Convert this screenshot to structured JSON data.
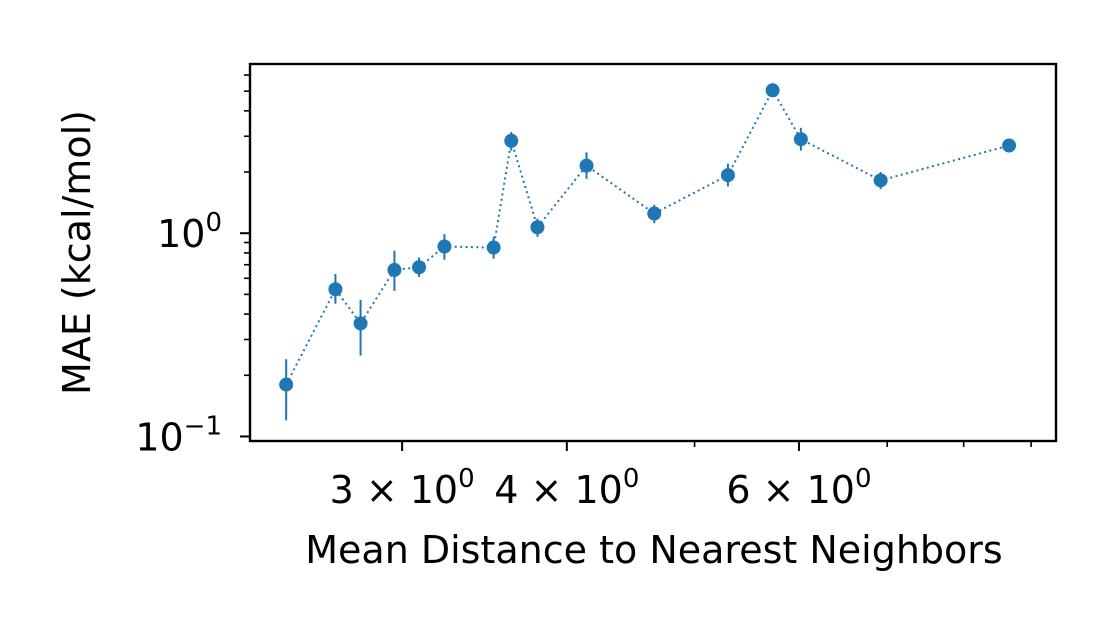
{
  "chart_data": {
    "type": "scatter",
    "title": "",
    "xlabel": "Mean Distance to Nearest Neighbors",
    "ylabel": "MAE (kcal/mol)",
    "x_scale": "log",
    "y_scale": "log",
    "xlim": [
      2.3,
      9.4
    ],
    "ylim": [
      0.095,
      6.8
    ],
    "x_major_ticks": [
      {
        "value": 3,
        "mantissa": "3",
        "exp": "0"
      },
      {
        "value": 4,
        "mantissa": "4",
        "exp": "0"
      },
      {
        "value": 6,
        "mantissa": "6",
        "exp": "0"
      }
    ],
    "x_minor_ticks": [
      5,
      7,
      8,
      9
    ],
    "y_major_ticks": [
      {
        "value": 0.1,
        "mantissa": "10",
        "exp": "−1"
      },
      {
        "value": 1.0,
        "mantissa": "10",
        "exp": "0"
      }
    ],
    "y_minor_ticks": [
      0.2,
      0.3,
      0.4,
      0.5,
      0.6,
      0.7,
      0.8,
      0.9,
      2,
      3,
      4,
      5,
      6
    ],
    "line_style": "dotted",
    "color": "#1f77b4",
    "grid": false,
    "points": [
      {
        "x": 2.45,
        "y": 0.18,
        "err_low": 0.12,
        "err_high": 0.24
      },
      {
        "x": 2.67,
        "y": 0.53,
        "err_low": 0.45,
        "err_high": 0.63
      },
      {
        "x": 2.79,
        "y": 0.36,
        "err_low": 0.25,
        "err_high": 0.47
      },
      {
        "x": 2.96,
        "y": 0.66,
        "err_low": 0.52,
        "err_high": 0.82
      },
      {
        "x": 3.09,
        "y": 0.68,
        "err_low": 0.61,
        "err_high": 0.76
      },
      {
        "x": 3.23,
        "y": 0.86,
        "err_low": 0.74,
        "err_high": 0.99
      },
      {
        "x": 3.52,
        "y": 0.85,
        "err_low": 0.75,
        "err_high": 0.96
      },
      {
        "x": 3.63,
        "y": 2.85,
        "err_low": 2.55,
        "err_high": 3.15
      },
      {
        "x": 3.8,
        "y": 1.07,
        "err_low": 0.96,
        "err_high": 1.18
      },
      {
        "x": 4.14,
        "y": 2.15,
        "err_low": 1.85,
        "err_high": 2.5
      },
      {
        "x": 4.66,
        "y": 1.25,
        "err_low": 1.12,
        "err_high": 1.38
      },
      {
        "x": 5.3,
        "y": 1.93,
        "err_low": 1.7,
        "err_high": 2.2
      },
      {
        "x": 5.73,
        "y": 5.05,
        "err_low": 4.8,
        "err_high": 5.3
      },
      {
        "x": 6.02,
        "y": 2.9,
        "err_low": 2.55,
        "err_high": 3.3
      },
      {
        "x": 6.92,
        "y": 1.82,
        "err_low": 1.65,
        "err_high": 2.0
      },
      {
        "x": 8.66,
        "y": 2.7,
        "err_low": 2.55,
        "err_high": 2.85
      }
    ]
  }
}
